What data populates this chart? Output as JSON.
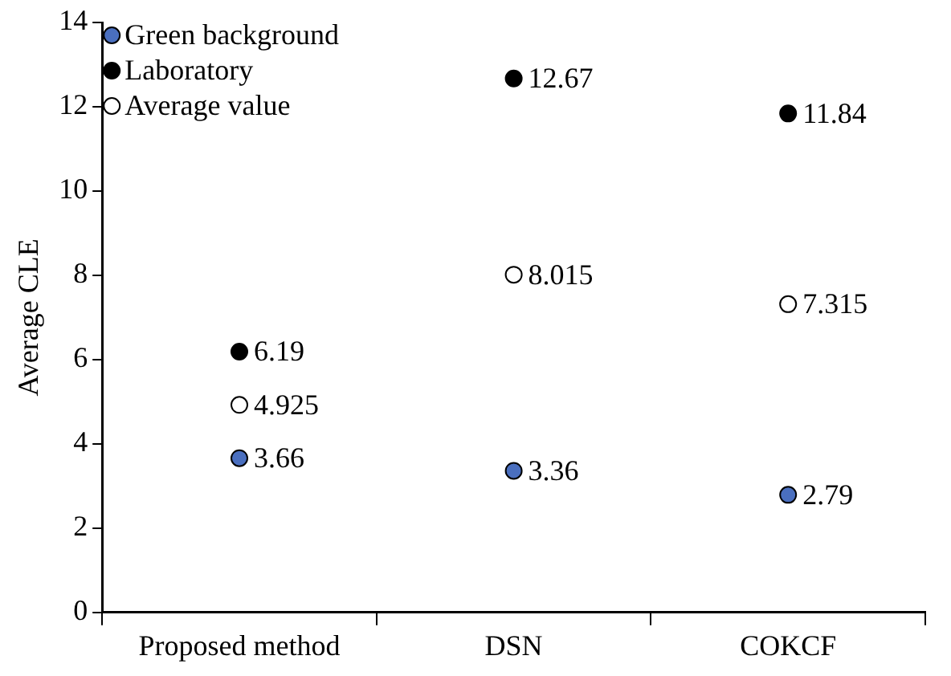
{
  "chart_data": {
    "type": "scatter",
    "ylabel": "Average CLE",
    "categories": [
      "Proposed method",
      "DSN",
      "COKCF"
    ],
    "series": [
      {
        "name": "Green background",
        "color": "#4a6fbf",
        "values": [
          3.66,
          3.36,
          2.79
        ]
      },
      {
        "name": "Laboratory",
        "color": "#000000",
        "values": [
          6.19,
          12.67,
          11.84
        ]
      },
      {
        "name": "Average value",
        "color": "#ffffff",
        "values": [
          4.925,
          8.015,
          7.315
        ]
      }
    ],
    "ylim": [
      0,
      14
    ],
    "yticks": [
      0,
      2,
      4,
      6,
      8,
      10,
      12,
      14
    ],
    "grid": false,
    "legend": "top left",
    "marker": "circle",
    "data_labels": true
  }
}
